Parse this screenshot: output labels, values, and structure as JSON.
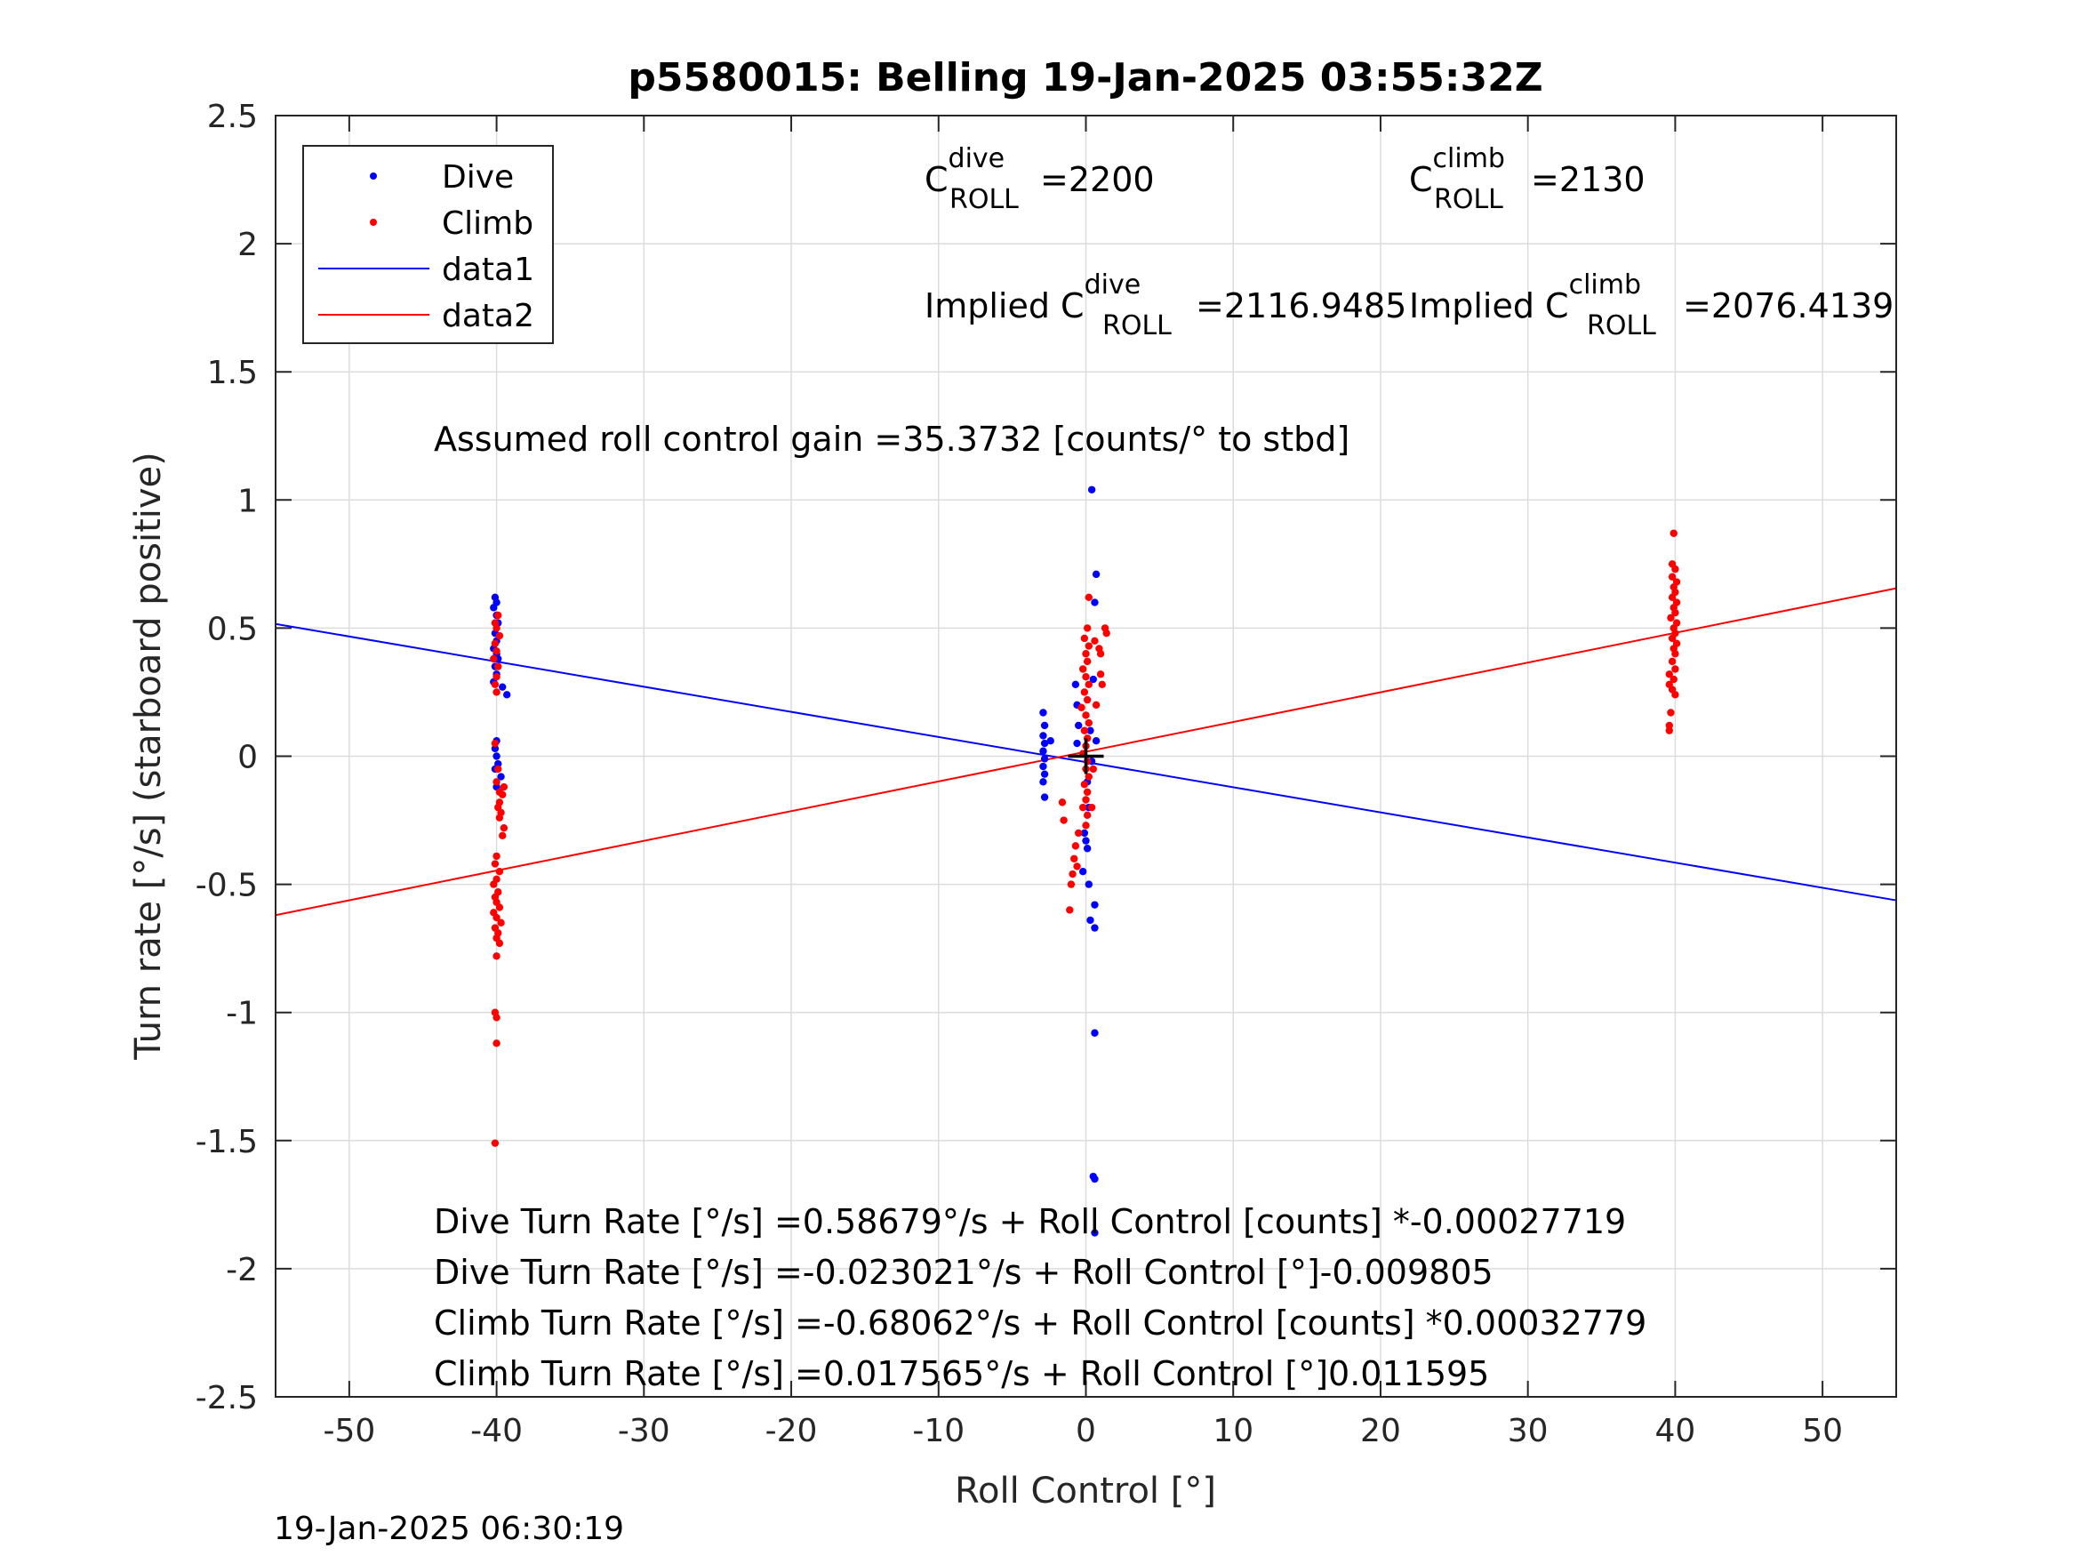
{
  "chart_data": {
    "type": "scatter",
    "title": "p5580015: Belling 19-Jan-2025 03:55:32Z",
    "xlabel": "Roll Control [°]",
    "ylabel": "Turn rate [°/s] (starboard positive)",
    "xlim": [
      -55,
      55
    ],
    "ylim": [
      -2.5,
      2.5
    ],
    "x_ticks": [
      "-50",
      "-40",
      "-30",
      "-20",
      "-10",
      "0",
      "10",
      "20",
      "30",
      "40",
      "50"
    ],
    "y_ticks": [
      "-2.5",
      "-2",
      "-1.5",
      "-1",
      "-0.5",
      "0",
      "0.5",
      "1",
      "1.5",
      "2",
      "2.5"
    ],
    "grid": true,
    "legend_position": "top-left",
    "colors": {
      "dive": "#0000ff",
      "climb": "#ff0000"
    },
    "series": [
      {
        "name": "Dive",
        "style": "points",
        "color": "#0000ff",
        "points": [
          [
            -40.1,
            0.62
          ],
          [
            -40.0,
            0.6
          ],
          [
            -40.2,
            0.58
          ],
          [
            -40.0,
            0.55
          ],
          [
            -39.9,
            0.52
          ],
          [
            -40.1,
            0.48
          ],
          [
            -40.0,
            0.45
          ],
          [
            -40.2,
            0.42
          ],
          [
            -40.0,
            0.4
          ],
          [
            -39.9,
            0.38
          ],
          [
            -40.1,
            0.35
          ],
          [
            -40.0,
            0.32
          ],
          [
            -40.2,
            0.29
          ],
          [
            -39.6,
            0.27
          ],
          [
            -39.3,
            0.24
          ],
          [
            -40.0,
            0.06
          ],
          [
            -40.1,
            0.03
          ],
          [
            -40.0,
            0.0
          ],
          [
            -39.9,
            -0.03
          ],
          [
            -40.1,
            -0.05
          ],
          [
            -39.7,
            -0.08
          ],
          [
            -40.0,
            -0.12
          ],
          [
            -2.9,
            0.17
          ],
          [
            -2.8,
            0.12
          ],
          [
            -2.9,
            0.08
          ],
          [
            -2.8,
            0.05
          ],
          [
            -2.9,
            0.02
          ],
          [
            -2.8,
            -0.01
          ],
          [
            -2.9,
            -0.04
          ],
          [
            -2.8,
            -0.07
          ],
          [
            -2.9,
            -0.1
          ],
          [
            -2.8,
            -0.16
          ],
          [
            -2.4,
            0.06
          ],
          [
            -0.7,
            0.28
          ],
          [
            -0.6,
            0.2
          ],
          [
            -0.5,
            0.12
          ],
          [
            -0.6,
            0.05
          ],
          [
            0.4,
            1.04
          ],
          [
            0.7,
            0.71
          ],
          [
            0.6,
            0.6
          ],
          [
            0.5,
            0.3
          ],
          [
            0.3,
            0.1
          ],
          [
            0.7,
            0.06
          ],
          [
            0.4,
            -0.02
          ],
          [
            0.1,
            -0.1
          ],
          [
            0.2,
            -0.2
          ],
          [
            -0.1,
            -0.3
          ],
          [
            0.0,
            -0.33
          ],
          [
            0.1,
            -0.36
          ],
          [
            -0.2,
            -0.45
          ],
          [
            0.2,
            -0.5
          ],
          [
            0.6,
            -0.58
          ],
          [
            0.3,
            -0.64
          ],
          [
            0.6,
            -0.67
          ],
          [
            0.6,
            -1.08
          ],
          [
            0.5,
            -1.64
          ],
          [
            0.6,
            -1.65
          ],
          [
            0.6,
            -1.86
          ]
        ]
      },
      {
        "name": "Climb",
        "style": "points",
        "color": "#ff0000",
        "points": [
          [
            -39.9,
            0.55
          ],
          [
            -40.1,
            0.52
          ],
          [
            -40.0,
            0.5
          ],
          [
            -39.8,
            0.47
          ],
          [
            -40.1,
            0.44
          ],
          [
            -40.0,
            0.41
          ],
          [
            -40.2,
            0.38
          ],
          [
            -39.9,
            0.35
          ],
          [
            -40.0,
            0.31
          ],
          [
            -40.1,
            0.28
          ],
          [
            -40.0,
            0.25
          ],
          [
            -40.1,
            0.05
          ],
          [
            -39.9,
            -0.05
          ],
          [
            -40.0,
            -0.1
          ],
          [
            -39.8,
            -0.14
          ],
          [
            -39.8,
            -0.18
          ],
          [
            -39.9,
            -0.2
          ],
          [
            -39.7,
            -0.22
          ],
          [
            -39.8,
            -0.24
          ],
          [
            -39.6,
            -0.15
          ],
          [
            -39.5,
            -0.12
          ],
          [
            -39.5,
            -0.28
          ],
          [
            -39.6,
            -0.31
          ],
          [
            -40.0,
            -0.39
          ],
          [
            -40.1,
            -0.42
          ],
          [
            -39.8,
            -0.45
          ],
          [
            -40.0,
            -0.48
          ],
          [
            -40.2,
            -0.5
          ],
          [
            -39.9,
            -0.53
          ],
          [
            -40.1,
            -0.55
          ],
          [
            -40.0,
            -0.57
          ],
          [
            -39.8,
            -0.59
          ],
          [
            -40.2,
            -0.61
          ],
          [
            -40.0,
            -0.63
          ],
          [
            -39.7,
            -0.65
          ],
          [
            -40.1,
            -0.67
          ],
          [
            -39.9,
            -0.69
          ],
          [
            -40.0,
            -0.71
          ],
          [
            -39.8,
            -0.73
          ],
          [
            -40.0,
            -0.78
          ],
          [
            -40.1,
            -1.0
          ],
          [
            -40.0,
            -1.02
          ],
          [
            -40.0,
            -1.12
          ],
          [
            -40.1,
            -1.51
          ],
          [
            0.2,
            0.62
          ],
          [
            0.1,
            0.5
          ],
          [
            -0.1,
            0.46
          ],
          [
            0.2,
            0.43
          ],
          [
            0.0,
            0.4
          ],
          [
            0.1,
            0.37
          ],
          [
            -0.2,
            0.34
          ],
          [
            0.0,
            0.31
          ],
          [
            0.2,
            0.28
          ],
          [
            -0.1,
            0.25
          ],
          [
            0.1,
            0.22
          ],
          [
            -0.3,
            0.19
          ],
          [
            0.0,
            0.16
          ],
          [
            0.2,
            0.13
          ],
          [
            -0.1,
            0.1
          ],
          [
            0.1,
            0.07
          ],
          [
            0.0,
            0.04
          ],
          [
            -0.2,
            0.01
          ],
          [
            0.1,
            -0.02
          ],
          [
            0.0,
            -0.05
          ],
          [
            0.2,
            -0.08
          ],
          [
            -0.1,
            -0.11
          ],
          [
            0.1,
            -0.14
          ],
          [
            0.0,
            -0.17
          ],
          [
            -0.2,
            -0.2
          ],
          [
            0.1,
            -0.23
          ],
          [
            0.0,
            -0.27
          ],
          [
            -0.5,
            -0.3
          ],
          [
            -0.7,
            -0.35
          ],
          [
            -0.8,
            -0.4
          ],
          [
            -0.6,
            -0.43
          ],
          [
            -0.9,
            -0.46
          ],
          [
            -1.0,
            -0.5
          ],
          [
            -1.1,
            -0.6
          ],
          [
            0.6,
            0.45
          ],
          [
            0.9,
            0.42
          ],
          [
            1.0,
            0.4
          ],
          [
            1.3,
            0.5
          ],
          [
            1.4,
            0.48
          ],
          [
            1.0,
            0.32
          ],
          [
            1.1,
            0.28
          ],
          [
            0.7,
            0.2
          ],
          [
            0.5,
            -0.05
          ],
          [
            0.4,
            -0.2
          ],
          [
            -1.5,
            -0.25
          ],
          [
            -1.6,
            -0.18
          ],
          [
            39.9,
            0.87
          ],
          [
            39.8,
            0.75
          ],
          [
            40.0,
            0.73
          ],
          [
            39.8,
            0.7
          ],
          [
            40.1,
            0.68
          ],
          [
            39.9,
            0.66
          ],
          [
            40.0,
            0.64
          ],
          [
            39.8,
            0.62
          ],
          [
            40.1,
            0.6
          ],
          [
            39.9,
            0.58
          ],
          [
            40.0,
            0.56
          ],
          [
            39.7,
            0.54
          ],
          [
            40.1,
            0.52
          ],
          [
            39.9,
            0.5
          ],
          [
            40.0,
            0.48
          ],
          [
            39.8,
            0.46
          ],
          [
            40.1,
            0.44
          ],
          [
            39.9,
            0.42
          ],
          [
            40.0,
            0.4
          ],
          [
            39.8,
            0.37
          ],
          [
            40.0,
            0.34
          ],
          [
            39.6,
            0.32
          ],
          [
            39.6,
            0.28
          ],
          [
            39.9,
            0.3
          ],
          [
            39.8,
            0.26
          ],
          [
            40.0,
            0.24
          ],
          [
            39.7,
            0.17
          ],
          [
            39.6,
            0.12
          ],
          [
            39.6,
            0.1
          ]
        ]
      },
      {
        "name": "data1",
        "style": "line",
        "color": "#0000ff",
        "points": [
          [
            -55,
            0.5163
          ],
          [
            55,
            -0.5623
          ]
        ]
      },
      {
        "name": "data2",
        "style": "line",
        "color": "#ff0000",
        "points": [
          [
            -55,
            -0.6202
          ],
          [
            55,
            0.6553
          ]
        ]
      }
    ],
    "origin_marker": {
      "x": 0,
      "y": 0,
      "label": "+"
    },
    "annotations": {
      "c_roll_dive": {
        "base": "C",
        "sup": "dive",
        "sub": "ROLL",
        "value": "=2200"
      },
      "c_roll_climb": {
        "base": "C",
        "sup": "climb",
        "sub": "ROLL",
        "value": "=2130"
      },
      "implied_dive": {
        "prefix": "Implied C",
        "sup": "dive",
        "sub": "ROLL",
        "value": "=2116.9485"
      },
      "implied_climb": {
        "prefix": "Implied C",
        "sup": "climb",
        "sub": "ROLL",
        "value": "=2076.4139"
      },
      "gain": "Assumed roll control gain =35.3732 [counts/° to stbd]",
      "equations": [
        "Dive Turn Rate [°/s] =0.58679°/s + Roll Control [counts] *-0.00027719",
        "Dive Turn Rate [°/s] =-0.023021°/s + Roll Control [°]-0.009805",
        "Climb Turn Rate [°/s] =-0.68062°/s + Roll Control [counts] *0.00032779",
        "Climb Turn Rate [°/s] =0.017565°/s + Roll Control [°]0.011595"
      ]
    },
    "timestamp": "19-Jan-2025 06:30:19"
  }
}
